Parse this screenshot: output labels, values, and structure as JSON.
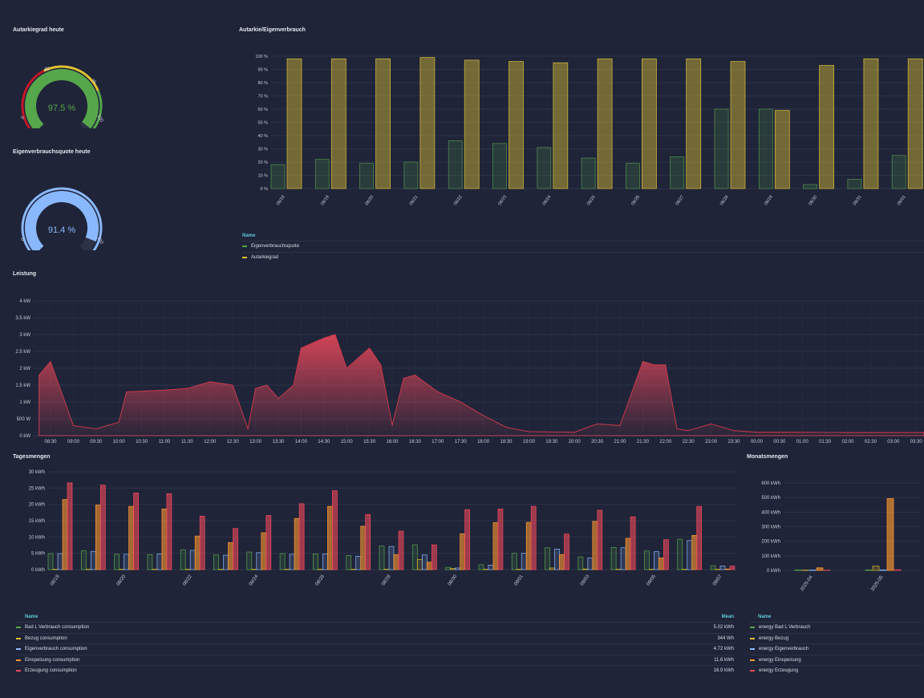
{
  "colors": {
    "green": "#56a64b",
    "yellow": "#e0c12d",
    "blue": "#8ab8ff",
    "orange": "#ff9830",
    "red": "#f2495c",
    "olive": "#9a8a2e",
    "bg": "#1f2438"
  },
  "gauge_autarkie": {
    "title": "Autarkiegrad heute",
    "value": 97.5,
    "display": "97.5 %",
    "ticks": [
      "0",
      "40",
      "75",
      "100"
    ]
  },
  "gauge_eigen": {
    "title": "Eigenverbrauchsquote heute",
    "value": 91.4,
    "display": "91.4 %",
    "ticks": [
      "0",
      "100"
    ]
  },
  "top_chart": {
    "title": "Autarkie/Eigenverbrauch",
    "legend_header": "Name",
    "series_names": [
      "Eigenverbrauchsquote",
      "Autarkiegrad"
    ]
  },
  "leistung": {
    "title": "Leistung"
  },
  "tages": {
    "title": "Tagesmengen",
    "legend_header": "Name",
    "mean_header": "Mean",
    "legend": [
      {
        "name": "Bad L Verbrauch consumption",
        "mean": "5.02 kWh",
        "color": "#56a64b"
      },
      {
        "name": "Bezug consumption",
        "mean": "344 Wh",
        "color": "#e0c12d"
      },
      {
        "name": "Eigenverbrauch consumption",
        "mean": "4.72 kWh",
        "color": "#8ab8ff"
      },
      {
        "name": "Einspeisung consumption",
        "mean": "11.6 kWh",
        "color": "#ff9830"
      },
      {
        "name": "Erzeugung consumption",
        "mean": "16.9 kWh",
        "color": "#f2495c"
      }
    ]
  },
  "monats": {
    "title": "Monatsmengen",
    "legend_header": "Name",
    "legend": [
      {
        "name": "energy Bad L Verbrauch",
        "color": "#56a64b"
      },
      {
        "name": "energy Bezug",
        "color": "#e0c12d"
      },
      {
        "name": "energy Eigenverbrauch",
        "color": "#8ab8ff"
      },
      {
        "name": "energy Einspeisung",
        "color": "#ff9830"
      },
      {
        "name": "energy Erzeugung",
        "color": "#f2495c"
      }
    ]
  },
  "chart_data": [
    {
      "type": "bar",
      "title": "Autarkie/Eigenverbrauch",
      "categories": [
        "08/18",
        "08/19",
        "08/20",
        "08/21",
        "08/22",
        "08/23",
        "08/24",
        "08/25",
        "08/26",
        "08/27",
        "08/28",
        "08/29",
        "08/30",
        "08/31",
        "09/01"
      ],
      "series": [
        {
          "name": "Eigenverbrauchsquote",
          "values": [
            18,
            22,
            19,
            20,
            36,
            34,
            31,
            23,
            19,
            24,
            60,
            60,
            3,
            7,
            25
          ]
        },
        {
          "name": "Autarkiegrad",
          "values": [
            98,
            98,
            98,
            99,
            97,
            96,
            95,
            98,
            98,
            98,
            96,
            59,
            93,
            98,
            98
          ]
        }
      ],
      "yticks": [
        "0 %",
        "10 %",
        "20 %",
        "30 %",
        "40 %",
        "50 %",
        "60 %",
        "70 %",
        "80 %",
        "90 %",
        "100 %"
      ],
      "ylim": [
        0,
        100
      ]
    },
    {
      "type": "area",
      "title": "Leistung",
      "xticks": [
        "08:30",
        "09:00",
        "09:30",
        "10:00",
        "10:30",
        "11:00",
        "11:30",
        "12:00",
        "12:30",
        "13:00",
        "13:30",
        "14:00",
        "14:30",
        "15:00",
        "15:30",
        "16:00",
        "16:30",
        "17:00",
        "17:30",
        "18:00",
        "18:30",
        "19:00",
        "19:30",
        "20:00",
        "20:30",
        "21:00",
        "21:30",
        "22:00",
        "22:30",
        "23:00",
        "23:30",
        "00:00",
        "00:30",
        "01:00",
        "01:30",
        "02:00",
        "02:30",
        "03:00",
        "03:30"
      ],
      "yticks": [
        "0 kW",
        "500 W",
        "1 kW",
        "1.5 kW",
        "2 kW",
        "2.5 kW",
        "3 kW",
        "3.5 kW",
        "4 kW"
      ],
      "ylim": [
        0,
        4000
      ],
      "series": [
        {
          "name": "Erzeugung",
          "x": [
            "08:15",
            "08:30",
            "09:00",
            "09:30",
            "10:00",
            "10:10",
            "11:00",
            "11:30",
            "11:45",
            "12:00",
            "12:30",
            "12:50",
            "13:00",
            "13:15",
            "13:30",
            "13:50",
            "14:00",
            "14:30",
            "14:45",
            "15:00",
            "15:30",
            "15:45",
            "16:00",
            "16:15",
            "16:30",
            "17:00",
            "17:30",
            "18:00",
            "18:30",
            "19:00",
            "20:00",
            "20:30",
            "21:00",
            "21:30",
            "21:45",
            "22:00",
            "22:15",
            "22:30",
            "23:00",
            "23:30",
            "00:00",
            "01:00",
            "02:00",
            "03:00",
            "03:40"
          ],
          "y": [
            1800,
            2200,
            300,
            200,
            400,
            1300,
            1350,
            1400,
            1500,
            1600,
            1500,
            200,
            1400,
            1500,
            1100,
            1500,
            2600,
            2900,
            3000,
            2000,
            2600,
            2100,
            300,
            1700,
            1800,
            1300,
            1000,
            600,
            250,
            120,
            100,
            350,
            300,
            2200,
            2100,
            2100,
            200,
            150,
            350,
            150,
            100,
            100,
            90,
            90,
            90
          ]
        }
      ]
    },
    {
      "type": "bar",
      "title": "Tagesmengen",
      "categories": [
        "08/18",
        "08/19",
        "08/20",
        "08/21",
        "08/22",
        "08/23",
        "08/24",
        "08/25",
        "08/26",
        "08/27",
        "08/28",
        "08/29",
        "08/30",
        "08/31",
        "09/01",
        "09/02",
        "09/03",
        "09/04",
        "09/05",
        "09/06",
        "09/07"
      ],
      "xtick_labels": [
        "08/18",
        "08/20",
        "08/22",
        "08/24",
        "08/26",
        "08/28",
        "08/30",
        "09/01",
        "09/03",
        "09/05",
        "09/07"
      ],
      "series": [
        {
          "name": "Bad L Verbrauch consumption",
          "values": [
            4.9,
            5.8,
            4.7,
            4.6,
            6.1,
            4.5,
            5.4,
            4.9,
            4.8,
            4.3,
            7.2,
            7.6,
            0.7,
            1.5,
            5.0,
            6.7,
            3.9,
            6.8,
            5.7,
            9.3,
            1.2
          ]
        },
        {
          "name": "Bezug consumption",
          "values": [
            0.1,
            0.1,
            0.1,
            0.1,
            0.1,
            0.1,
            0.1,
            0.1,
            0.1,
            0.1,
            0.1,
            3.1,
            0.4,
            0.1,
            0.1,
            0.5,
            0.2,
            0.1,
            0.1,
            0.1,
            0.1
          ]
        },
        {
          "name": "Eigenverbrauch consumption",
          "values": [
            4.9,
            5.6,
            4.7,
            4.8,
            5.9,
            4.4,
            5.2,
            4.7,
            4.8,
            4.1,
            7.1,
            4.5,
            0.5,
            1.4,
            5.0,
            6.3,
            3.6,
            6.7,
            5.5,
            8.9,
            1.1
          ]
        },
        {
          "name": "Einspeisung consumption",
          "values": [
            21.5,
            19.8,
            19.4,
            18.6,
            10.3,
            8.3,
            11.3,
            15.7,
            19.4,
            13.3,
            4.6,
            2.3,
            11.0,
            14.4,
            14.5,
            4.6,
            14.8,
            9.6,
            3.6,
            10.5,
            0.2
          ]
        },
        {
          "name": "Erzeugung consumption",
          "values": [
            26.6,
            25.9,
            23.5,
            23.3,
            16.4,
            12.6,
            16.6,
            20.2,
            24.2,
            16.9,
            11.8,
            7.6,
            18.4,
            18.6,
            19.4,
            10.9,
            18.2,
            16.2,
            9.2,
            19.4,
            1.1
          ]
        }
      ],
      "yticks": [
        "0 kWh",
        "5 kWh",
        "10 kWh",
        "15 kWh",
        "20 kWh",
        "25 kWh",
        "30 kWh"
      ],
      "ylim": [
        0,
        30
      ]
    },
    {
      "type": "bar",
      "title": "Monatsmengen",
      "categories": [
        "2025-04",
        "2025-05"
      ],
      "series": [
        {
          "name": "energy Bad L Verbrauch",
          "values": [
            4,
            4
          ]
        },
        {
          "name": "energy Bezug",
          "values": [
            2,
            29
          ]
        },
        {
          "name": "energy Eigenverbrauch",
          "values": [
            3,
            4
          ]
        },
        {
          "name": "energy Einspeisung",
          "values": [
            18,
            493
          ]
        },
        {
          "name": "energy Erzeugung",
          "values": [
            2,
            5
          ]
        }
      ],
      "yticks": [
        "0 kWh",
        "100 kWh",
        "200 kWh",
        "300 kWh",
        "400 kWh",
        "500 kWh",
        "600 kWh"
      ],
      "ylim": [
        0,
        600
      ]
    }
  ]
}
